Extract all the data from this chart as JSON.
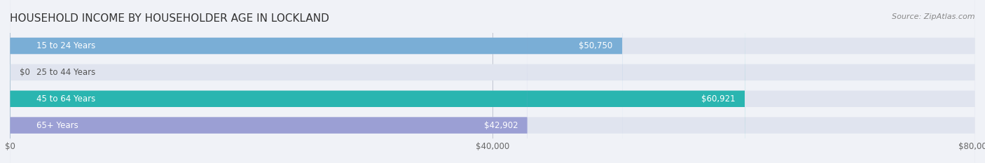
{
  "title": "HOUSEHOLD INCOME BY HOUSEHOLDER AGE IN LOCKLAND",
  "source": "Source: ZipAtlas.com",
  "categories": [
    "15 to 24 Years",
    "25 to 44 Years",
    "45 to 64 Years",
    "65+ Years"
  ],
  "values": [
    50750,
    0,
    60921,
    42902
  ],
  "bar_colors": [
    "#7aaed6",
    "#c9a8c8",
    "#2ab5b0",
    "#9b9fd4"
  ],
  "background_color": "#f0f2f7",
  "bar_background_color": "#e0e4ef",
  "xlim": [
    0,
    80000
  ],
  "xticks": [
    0,
    40000,
    80000
  ],
  "xtick_labels": [
    "$0",
    "$40,000",
    "$80,000"
  ],
  "label_fontsize": 8.5,
  "title_fontsize": 11,
  "bar_height": 0.62,
  "value_label_color_inside": "#ffffff",
  "value_label_color_outside": "#555555"
}
